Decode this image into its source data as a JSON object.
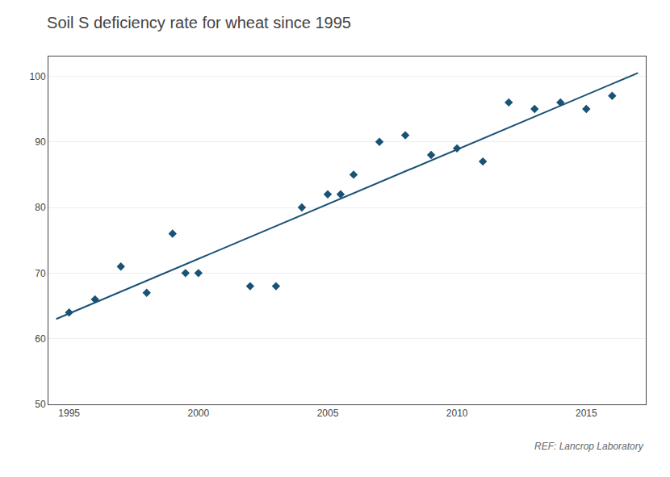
{
  "chart_data": {
    "type": "scatter",
    "title": "Soil S deficiency rate for wheat since 1995",
    "annotations": [
      "REF: Lancrop Laboratory"
    ],
    "series": [
      {
        "type": "line",
        "line_style": "solid",
        "color": "#1a5276",
        "x": [
          1994.5,
          2017.0
        ],
        "values": [
          63.0,
          100.5
        ]
      },
      {
        "type": "scatter",
        "marker": "diamond",
        "color": "#1a5276",
        "x": [
          1995,
          1996,
          1997,
          1998,
          1999,
          1999.5,
          2000,
          2002,
          2003,
          2004,
          2005,
          2005.5,
          2006,
          2007,
          2008,
          2009,
          2010,
          2011,
          2012,
          2013,
          2014,
          2015,
          2016
        ],
        "values": [
          64,
          66,
          71,
          67,
          76,
          70,
          70,
          68,
          68,
          80,
          82,
          82,
          85,
          90,
          91,
          88,
          89,
          87,
          96,
          95,
          96,
          95,
          97
        ]
      }
    ],
    "xlim": [
      1994.2,
      2017.3
    ],
    "ylim": [
      50,
      103
    ],
    "xticks": [
      1995,
      2000,
      2005,
      2010,
      2015
    ],
    "yticks": [
      50,
      60,
      70,
      80,
      90,
      100
    ],
    "grid": "y"
  }
}
